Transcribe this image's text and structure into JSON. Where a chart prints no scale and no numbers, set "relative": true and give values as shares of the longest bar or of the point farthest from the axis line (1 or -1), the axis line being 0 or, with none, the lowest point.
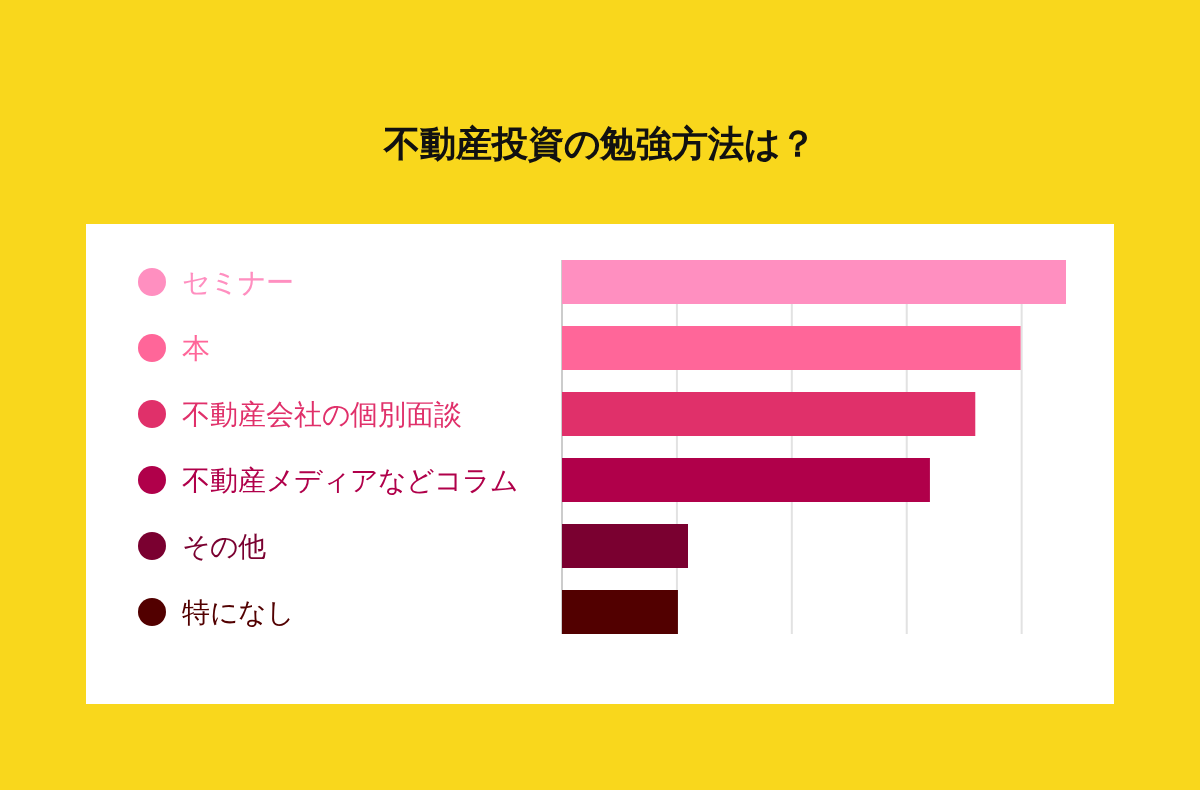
{
  "chart_data": {
    "type": "bar",
    "orientation": "horizontal",
    "relative": true,
    "title": "不動産投資の勉強方法は？",
    "categories": [
      "セミナー",
      "本",
      "不動産会社の個別面談",
      "不動産メディアなどコラム",
      "その他",
      "特になし"
    ],
    "values": [
      1,
      0.91,
      0.82,
      0.73,
      0.25,
      0.23
    ],
    "colors": [
      "#ff8fc0",
      "#ff6699",
      "#e0306a",
      "#b0004a",
      "#7a0030",
      "#520000"
    ],
    "grid": "x"
  }
}
